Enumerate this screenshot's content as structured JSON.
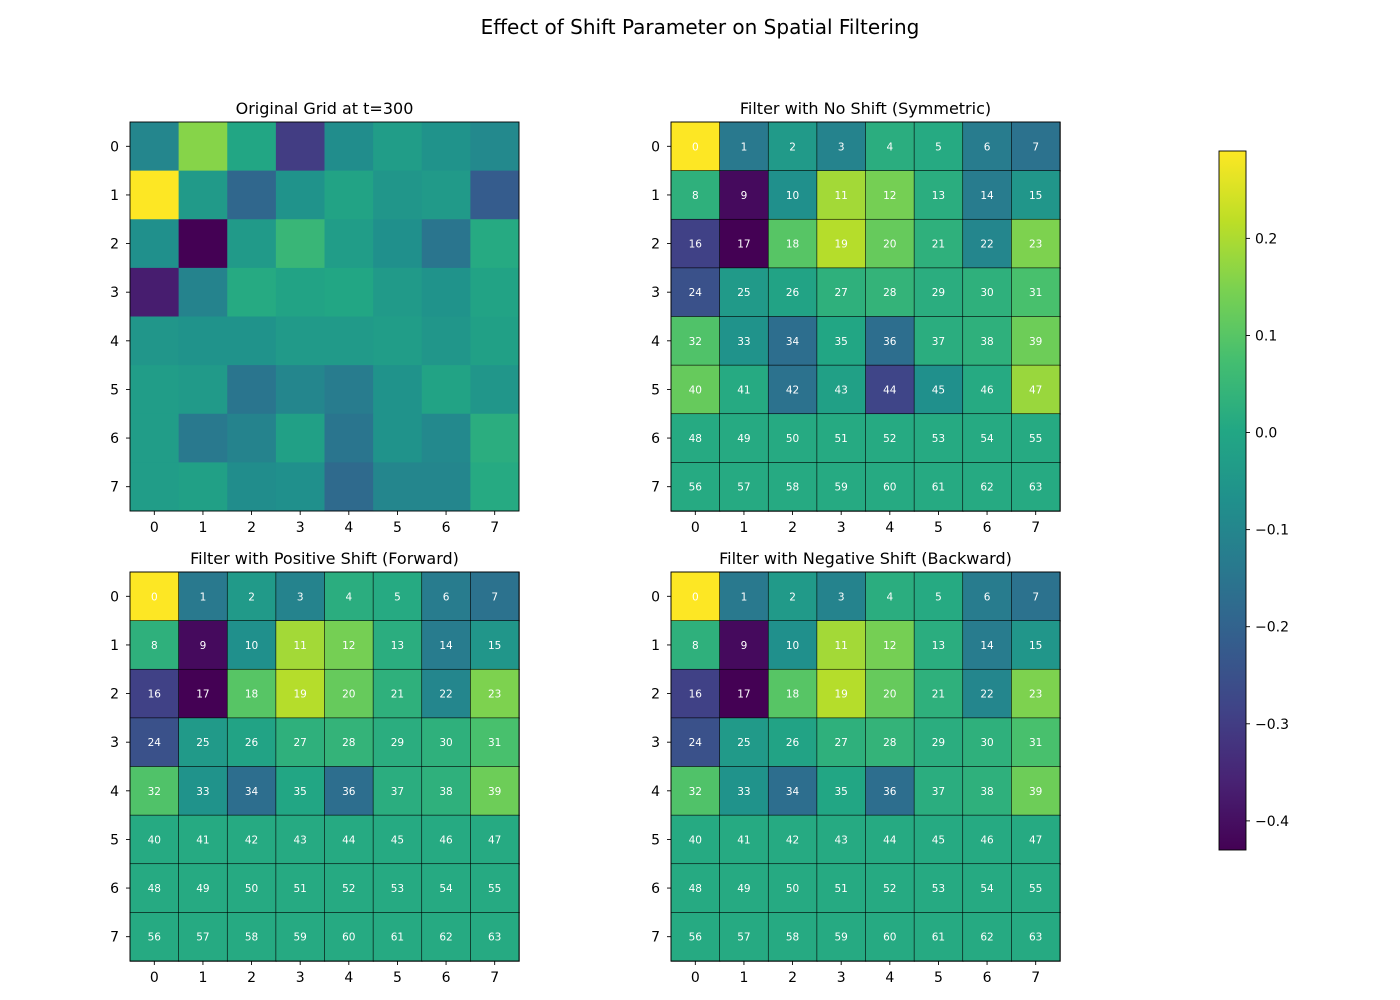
{
  "figure": {
    "title": "Effect of Shift Parameter on Spatial Filtering"
  },
  "chart_data": [
    {
      "type": "heatmap",
      "title": "Original Grid at t=300",
      "x_ticks": [
        "0",
        "1",
        "2",
        "3",
        "4",
        "5",
        "6",
        "7"
      ],
      "y_ticks": [
        "0",
        "1",
        "2",
        "3",
        "4",
        "5",
        "6",
        "7"
      ],
      "cell_labels": false,
      "values": [
        [
          -0.1,
          0.16,
          0.0,
          -0.3,
          -0.08,
          -0.03,
          -0.06,
          -0.09
        ],
        [
          0.29,
          -0.04,
          -0.19,
          -0.06,
          -0.01,
          -0.05,
          -0.04,
          -0.22
        ],
        [
          -0.07,
          -0.43,
          -0.04,
          0.05,
          -0.03,
          -0.07,
          -0.15,
          0.01
        ],
        [
          -0.37,
          -0.11,
          0.01,
          -0.01,
          0.0,
          -0.04,
          -0.06,
          -0.01
        ],
        [
          -0.05,
          -0.06,
          -0.06,
          -0.04,
          -0.04,
          -0.03,
          -0.05,
          -0.02
        ],
        [
          -0.03,
          -0.04,
          -0.15,
          -0.1,
          -0.13,
          -0.06,
          -0.01,
          -0.05
        ],
        [
          -0.03,
          -0.14,
          -0.11,
          -0.02,
          -0.15,
          -0.06,
          -0.09,
          0.02
        ],
        [
          -0.03,
          -0.02,
          -0.08,
          -0.07,
          -0.18,
          -0.1,
          -0.1,
          0.01
        ]
      ]
    },
    {
      "type": "heatmap",
      "title": "Filter with No Shift (Symmetric)",
      "x_ticks": [
        "0",
        "1",
        "2",
        "3",
        "4",
        "5",
        "6",
        "7"
      ],
      "y_ticks": [
        "0",
        "1",
        "2",
        "3",
        "4",
        "5",
        "6",
        "7"
      ],
      "cell_labels": true,
      "values": [
        [
          0.29,
          -0.14,
          -0.04,
          -0.11,
          0.02,
          0.01,
          -0.13,
          -0.16
        ],
        [
          0.03,
          -0.41,
          -0.07,
          0.19,
          0.14,
          0.02,
          -0.13,
          -0.05
        ],
        [
          -0.29,
          -0.43,
          0.1,
          0.21,
          0.12,
          0.03,
          -0.1,
          0.15
        ],
        [
          -0.25,
          -0.04,
          -0.01,
          0.03,
          0.04,
          0.02,
          0.03,
          0.08
        ],
        [
          0.09,
          -0.06,
          -0.17,
          0.0,
          -0.17,
          0.02,
          0.03,
          0.13
        ],
        [
          0.12,
          0.01,
          -0.16,
          -0.02,
          -0.28,
          -0.07,
          0.01,
          0.18
        ],
        [
          0.01,
          0.01,
          0.01,
          0.01,
          0.01,
          0.01,
          0.01,
          0.01
        ],
        [
          0.01,
          0.01,
          0.01,
          0.01,
          0.01,
          0.01,
          0.01,
          0.01
        ]
      ]
    },
    {
      "type": "heatmap",
      "title": "Filter with Positive Shift (Forward)",
      "x_ticks": [
        "0",
        "1",
        "2",
        "3",
        "4",
        "5",
        "6",
        "7"
      ],
      "y_ticks": [
        "0",
        "1",
        "2",
        "3",
        "4",
        "5",
        "6",
        "7"
      ],
      "cell_labels": true,
      "values": [
        [
          0.29,
          -0.14,
          -0.04,
          -0.11,
          0.02,
          0.01,
          -0.13,
          -0.16
        ],
        [
          0.03,
          -0.41,
          -0.07,
          0.19,
          0.14,
          0.02,
          -0.13,
          -0.05
        ],
        [
          -0.29,
          -0.43,
          0.1,
          0.21,
          0.12,
          0.03,
          -0.1,
          0.15
        ],
        [
          -0.25,
          -0.04,
          -0.01,
          0.03,
          0.04,
          0.02,
          0.03,
          0.08
        ],
        [
          0.09,
          -0.06,
          -0.17,
          0.0,
          -0.17,
          0.02,
          0.03,
          0.13
        ],
        [
          0.01,
          0.01,
          0.01,
          0.01,
          0.01,
          0.01,
          0.01,
          0.01
        ],
        [
          0.01,
          0.01,
          0.01,
          0.01,
          0.01,
          0.01,
          0.01,
          0.01
        ],
        [
          0.01,
          0.01,
          0.01,
          0.01,
          0.01,
          0.01,
          0.01,
          0.01
        ]
      ]
    },
    {
      "type": "heatmap",
      "title": "Filter with Negative Shift (Backward)",
      "x_ticks": [
        "0",
        "1",
        "2",
        "3",
        "4",
        "5",
        "6",
        "7"
      ],
      "y_ticks": [
        "0",
        "1",
        "2",
        "3",
        "4",
        "5",
        "6",
        "7"
      ],
      "cell_labels": true,
      "values": [
        [
          0.29,
          -0.14,
          -0.04,
          -0.11,
          0.02,
          0.01,
          -0.13,
          -0.16
        ],
        [
          0.03,
          -0.41,
          -0.07,
          0.19,
          0.14,
          0.02,
          -0.13,
          -0.05
        ],
        [
          -0.29,
          -0.43,
          0.1,
          0.21,
          0.12,
          0.03,
          -0.1,
          0.15
        ],
        [
          -0.25,
          -0.04,
          -0.01,
          0.03,
          0.04,
          0.02,
          0.03,
          0.08
        ],
        [
          0.09,
          -0.06,
          -0.17,
          0.0,
          -0.17,
          0.02,
          0.03,
          0.13
        ],
        [
          0.01,
          0.01,
          0.01,
          0.01,
          0.01,
          0.01,
          0.01,
          0.01
        ],
        [
          0.01,
          0.01,
          0.01,
          0.01,
          0.01,
          0.01,
          0.01,
          0.01
        ],
        [
          0.01,
          0.01,
          0.01,
          0.01,
          0.01,
          0.01,
          0.01,
          0.01
        ]
      ]
    }
  ],
  "colorbar": {
    "colormap": "viridis",
    "range": [
      -0.43,
      0.29
    ],
    "ticks": [
      -0.4,
      -0.3,
      -0.2,
      -0.1,
      0.0,
      0.1,
      0.2
    ],
    "tick_labels": [
      "−0.4",
      "−0.3",
      "−0.2",
      "−0.1",
      "0.0",
      "0.1",
      "0.2"
    ]
  }
}
